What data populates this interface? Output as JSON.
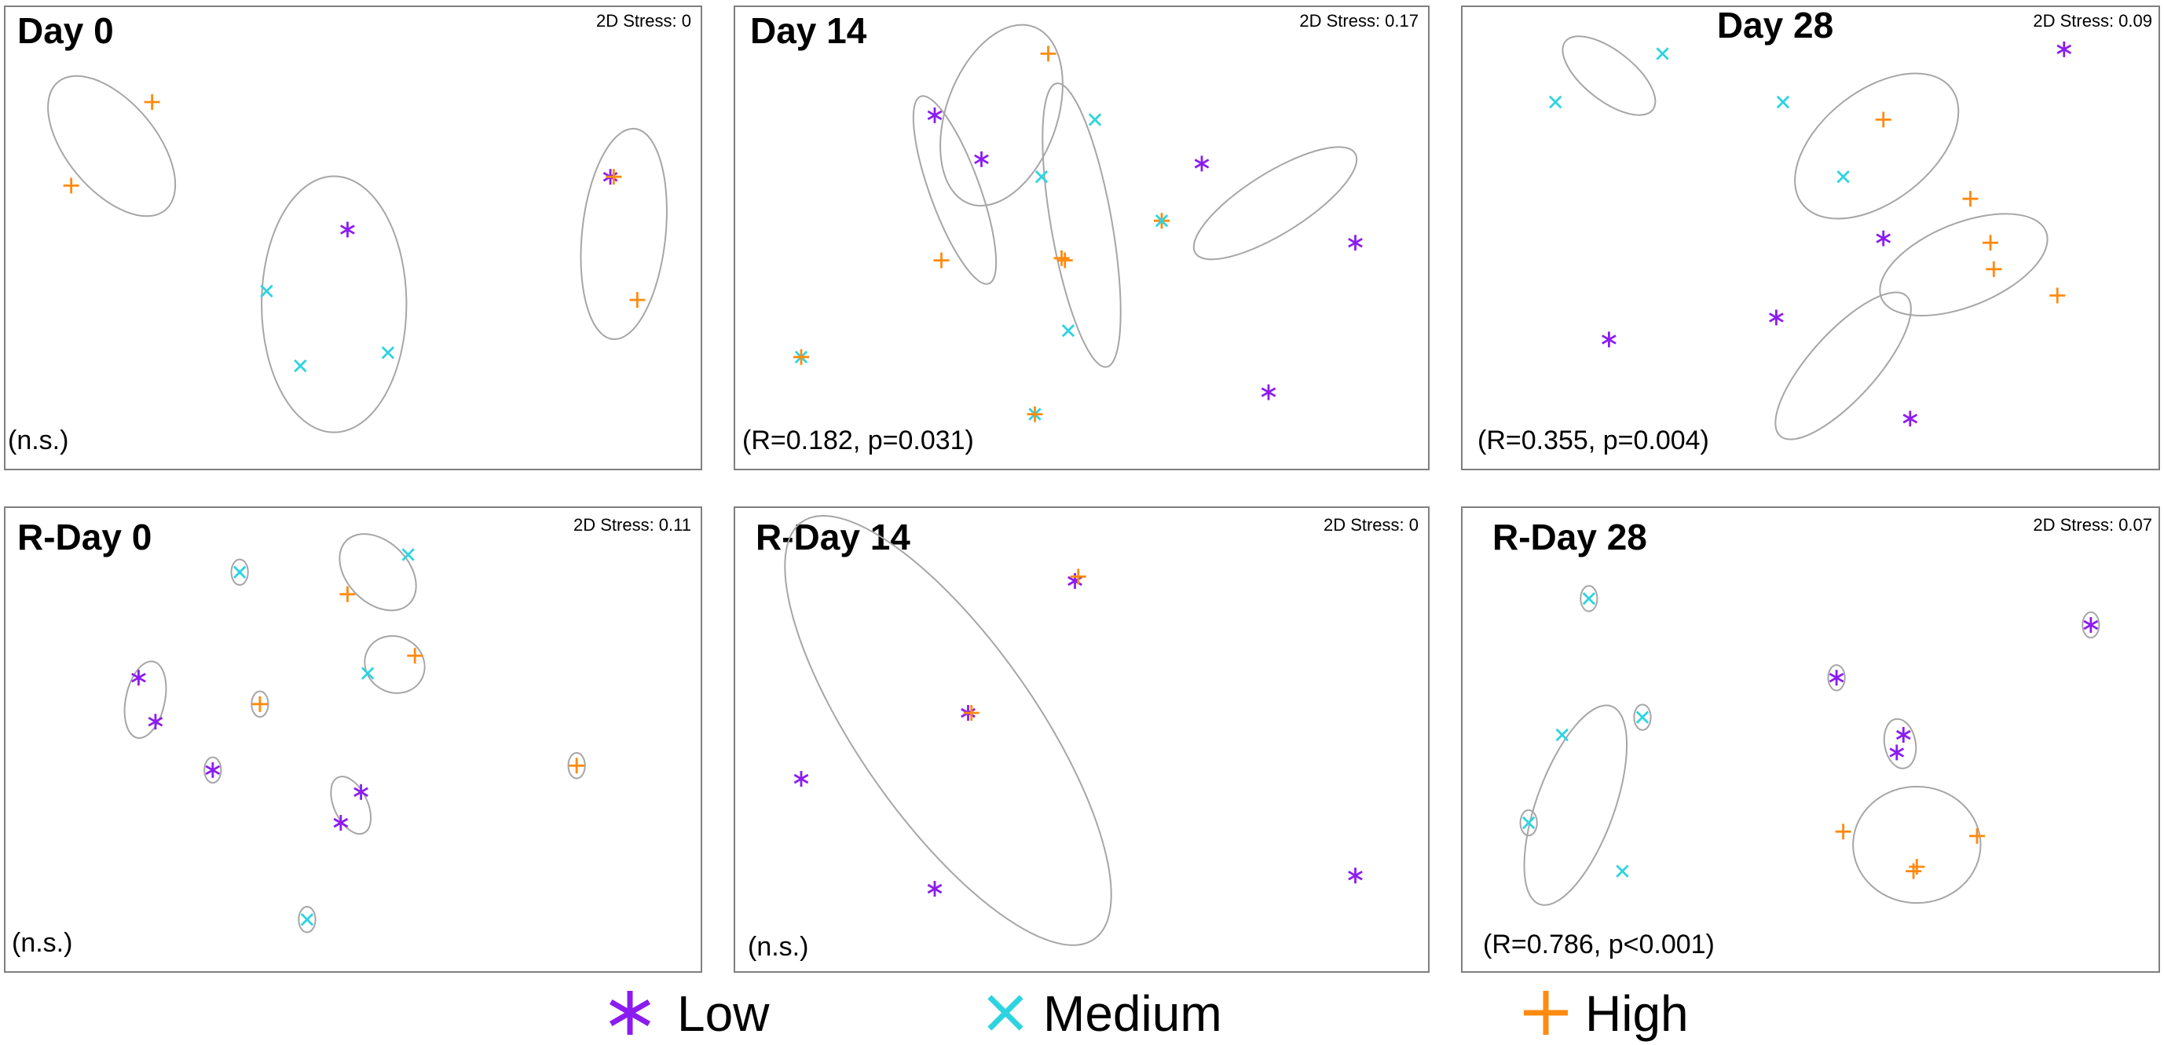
{
  "colors": {
    "Low": "#8b1cf0",
    "Medium": "#2dd4e0",
    "High": "#ff8a10",
    "ellipse": "#a6a6a6",
    "frame": "#7f7f7f"
  },
  "legend": {
    "items": [
      {
        "group": "Low",
        "label": "Low",
        "icon": "asterisk-icon"
      },
      {
        "group": "Medium",
        "label": "Medium",
        "icon": "cross-x-icon"
      },
      {
        "group": "High",
        "label": "High",
        "icon": "plus-icon"
      }
    ]
  },
  "chart_data": [
    {
      "type": "scatter",
      "title": "Day 0",
      "stress_label": "2D Stress: 0",
      "stat_label": "(n.s.)",
      "axes_visible": false,
      "xlim": [
        0,
        100
      ],
      "ylim": [
        0,
        100
      ],
      "points": [
        {
          "group": "High",
          "x": 20,
          "y": 80
        },
        {
          "group": "High",
          "x": 8,
          "y": 61
        },
        {
          "group": "Low",
          "x": 49,
          "y": 51
        },
        {
          "group": "Medium",
          "x": 37,
          "y": 37
        },
        {
          "group": "Medium",
          "x": 42,
          "y": 20
        },
        {
          "group": "Medium",
          "x": 55,
          "y": 23
        },
        {
          "group": "Low",
          "x": 88,
          "y": 63
        },
        {
          "group": "High",
          "x": 88.5,
          "y": 63
        },
        {
          "group": "High",
          "x": 92,
          "y": 35
        }
      ],
      "ellipses": [
        {
          "cx": 14,
          "cy": 70,
          "rx": 8,
          "ry": 15,
          "angle": 40
        },
        {
          "cx": 47,
          "cy": 34,
          "rx": 13,
          "ry": 23,
          "angle": 0
        },
        {
          "cx": 90,
          "cy": 50,
          "rx": 7.5,
          "ry": 19,
          "angle": -6
        }
      ]
    },
    {
      "type": "scatter",
      "title": "Day 14",
      "stress_label": "2D Stress: 0.17",
      "stat_label": "(R=0.182, p=0.031)",
      "axes_visible": false,
      "xlim": [
        0,
        100
      ],
      "ylim": [
        0,
        100
      ],
      "points": [
        {
          "group": "High",
          "x": 45,
          "y": 91
        },
        {
          "group": "Low",
          "x": 28,
          "y": 77
        },
        {
          "group": "Low",
          "x": 35,
          "y": 67
        },
        {
          "group": "Medium",
          "x": 44,
          "y": 63
        },
        {
          "group": "Medium",
          "x": 52,
          "y": 76
        },
        {
          "group": "High",
          "x": 29,
          "y": 44
        },
        {
          "group": "High",
          "x": 47,
          "y": 44.5
        },
        {
          "group": "High",
          "x": 47.5,
          "y": 44
        },
        {
          "group": "Medium",
          "x": 48,
          "y": 28
        },
        {
          "group": "High",
          "x": 62,
          "y": 53
        },
        {
          "group": "Medium",
          "x": 62,
          "y": 53
        },
        {
          "group": "Low",
          "x": 68,
          "y": 66
        },
        {
          "group": "Low",
          "x": 91,
          "y": 48
        },
        {
          "group": "Medium",
          "x": 8,
          "y": 22
        },
        {
          "group": "High",
          "x": 8,
          "y": 22
        },
        {
          "group": "Medium",
          "x": 43,
          "y": 9
        },
        {
          "group": "High",
          "x": 43,
          "y": 9
        },
        {
          "group": "Low",
          "x": 78,
          "y": 14
        }
      ],
      "ellipses": [
        {
          "cx": 38,
          "cy": 77,
          "rx": 10,
          "ry": 17,
          "angle": -20
        },
        {
          "cx": 31,
          "cy": 60,
          "rx": 4.5,
          "ry": 18,
          "angle": 20
        },
        {
          "cx": 50,
          "cy": 52,
          "rx": 5.5,
          "ry": 26,
          "angle": 10
        },
        {
          "cx": 79,
          "cy": 57,
          "rx": 5.5,
          "ry": 17,
          "angle": -58
        }
      ]
    },
    {
      "type": "scatter",
      "title": "Day 28",
      "stress_label": "2D Stress: 0.09",
      "stat_label": "(R=0.355, p=0.004)",
      "axes_visible": false,
      "xlim": [
        0,
        100
      ],
      "ylim": [
        0,
        100
      ],
      "points": [
        {
          "group": "Medium",
          "x": 28,
          "y": 91
        },
        {
          "group": "Medium",
          "x": 12,
          "y": 80
        },
        {
          "group": "Low",
          "x": 88,
          "y": 92
        },
        {
          "group": "Medium",
          "x": 46,
          "y": 80
        },
        {
          "group": "High",
          "x": 61,
          "y": 76
        },
        {
          "group": "Medium",
          "x": 55,
          "y": 63
        },
        {
          "group": "High",
          "x": 74,
          "y": 58
        },
        {
          "group": "Low",
          "x": 61,
          "y": 49
        },
        {
          "group": "High",
          "x": 77,
          "y": 48
        },
        {
          "group": "High",
          "x": 77.5,
          "y": 42
        },
        {
          "group": "High",
          "x": 87,
          "y": 36
        },
        {
          "group": "Low",
          "x": 20,
          "y": 26
        },
        {
          "group": "Low",
          "x": 45,
          "y": 31
        },
        {
          "group": "Low",
          "x": 65,
          "y": 8
        }
      ],
      "ellipses": [
        {
          "cx": 20,
          "cy": 86,
          "rx": 4.5,
          "ry": 10,
          "angle": 52
        },
        {
          "cx": 60,
          "cy": 70,
          "rx": 10,
          "ry": 17,
          "angle": -52
        },
        {
          "cx": 73,
          "cy": 43,
          "rx": 7.5,
          "ry": 16,
          "angle": -68
        },
        {
          "cx": 55,
          "cy": 20,
          "rx": 6,
          "ry": 17,
          "angle": -42
        }
      ]
    },
    {
      "type": "scatter",
      "title": "R-Day 0",
      "stress_label": "2D Stress: 0.11",
      "stat_label": "(n.s.)",
      "axes_visible": false,
      "xlim": [
        0,
        100
      ],
      "ylim": [
        0,
        100
      ],
      "points": [
        {
          "group": "Medium",
          "x": 33,
          "y": 87
        },
        {
          "group": "Medium",
          "x": 58,
          "y": 91
        },
        {
          "group": "High",
          "x": 49,
          "y": 82
        },
        {
          "group": "High",
          "x": 59,
          "y": 68
        },
        {
          "group": "Medium",
          "x": 52,
          "y": 64
        },
        {
          "group": "Low",
          "x": 18,
          "y": 63
        },
        {
          "group": "Low",
          "x": 20.5,
          "y": 53
        },
        {
          "group": "High",
          "x": 36,
          "y": 57
        },
        {
          "group": "Low",
          "x": 29,
          "y": 42
        },
        {
          "group": "High",
          "x": 83,
          "y": 43
        },
        {
          "group": "Low",
          "x": 51,
          "y": 37
        },
        {
          "group": "Low",
          "x": 48,
          "y": 30
        },
        {
          "group": "Medium",
          "x": 43,
          "y": 8
        }
      ],
      "ellipses": [
        {
          "cx": 33,
          "cy": 87,
          "rx": 1.5,
          "ry": 2.3,
          "angle": 0
        },
        {
          "cx": 53.5,
          "cy": 87,
          "rx": 5.5,
          "ry": 8,
          "angle": 45
        },
        {
          "cx": 56,
          "cy": 66,
          "rx": 5,
          "ry": 5.5,
          "angle": 60
        },
        {
          "cx": 19,
          "cy": 58,
          "rx": 3.5,
          "ry": 7,
          "angle": -12
        },
        {
          "cx": 36,
          "cy": 57,
          "rx": 1.5,
          "ry": 2.3,
          "angle": 0
        },
        {
          "cx": 29,
          "cy": 42,
          "rx": 1.5,
          "ry": 2.3,
          "angle": 0
        },
        {
          "cx": 83,
          "cy": 43,
          "rx": 1.5,
          "ry": 2.3,
          "angle": 0
        },
        {
          "cx": 49.5,
          "cy": 34,
          "rx": 3,
          "ry": 5.5,
          "angle": 25
        },
        {
          "cx": 43,
          "cy": 8,
          "rx": 1.5,
          "ry": 2.3,
          "angle": 0
        }
      ]
    },
    {
      "type": "scatter",
      "title": "R-Day 14",
      "stress_label": "2D Stress: 0",
      "stat_label": "(n.s.)",
      "axes_visible": false,
      "xlim": [
        0,
        100
      ],
      "ylim": [
        0,
        100
      ],
      "points": [
        {
          "group": "Low",
          "x": 49,
          "y": 85
        },
        {
          "group": "High",
          "x": 49.5,
          "y": 86
        },
        {
          "group": "Low",
          "x": 33,
          "y": 55
        },
        {
          "group": "High",
          "x": 33.5,
          "y": 55
        },
        {
          "group": "Low",
          "x": 8,
          "y": 40
        },
        {
          "group": "Low",
          "x": 28,
          "y": 15
        },
        {
          "group": "Low",
          "x": 91,
          "y": 18
        }
      ],
      "ellipses": [
        {
          "cx": 30,
          "cy": 51,
          "rx": 16,
          "ry": 46,
          "angle": 35
        }
      ]
    },
    {
      "type": "scatter",
      "title": "R-Day 28",
      "stress_label": "2D Stress: 0.07",
      "stat_label": "(R=0.786, p<0.001)",
      "axes_visible": false,
      "xlim": [
        0,
        100
      ],
      "ylim": [
        0,
        100
      ],
      "points": [
        {
          "group": "Medium",
          "x": 17,
          "y": 81
        },
        {
          "group": "Low",
          "x": 92,
          "y": 75
        },
        {
          "group": "Low",
          "x": 54,
          "y": 63
        },
        {
          "group": "Medium",
          "x": 25,
          "y": 54
        },
        {
          "group": "Low",
          "x": 64,
          "y": 50
        },
        {
          "group": "Low",
          "x": 63,
          "y": 46
        },
        {
          "group": "Medium",
          "x": 13,
          "y": 50
        },
        {
          "group": "Medium",
          "x": 8,
          "y": 30
        },
        {
          "group": "Medium",
          "x": 22,
          "y": 19
        },
        {
          "group": "High",
          "x": 55,
          "y": 28
        },
        {
          "group": "High",
          "x": 66,
          "y": 20
        },
        {
          "group": "High",
          "x": 65.5,
          "y": 19
        },
        {
          "group": "High",
          "x": 75,
          "y": 27
        }
      ],
      "ellipses": [
        {
          "cx": 17,
          "cy": 81,
          "rx": 1.5,
          "ry": 2.3,
          "angle": 0
        },
        {
          "cx": 92,
          "cy": 75,
          "rx": 1.5,
          "ry": 2.3,
          "angle": 0
        },
        {
          "cx": 54,
          "cy": 63,
          "rx": 1.5,
          "ry": 2.3,
          "angle": 0
        },
        {
          "cx": 25,
          "cy": 54,
          "rx": 1.5,
          "ry": 2.3,
          "angle": 0
        },
        {
          "cx": 63.5,
          "cy": 48,
          "rx": 2.8,
          "ry": 4.5,
          "angle": 10
        },
        {
          "cx": 8,
          "cy": 30,
          "rx": 1.5,
          "ry": 2.3,
          "angle": 0
        },
        {
          "cx": 15,
          "cy": 34,
          "rx": 7,
          "ry": 19,
          "angle": -20
        },
        {
          "cx": 66,
          "cy": 25,
          "rx": 11.5,
          "ry": 10.5,
          "angle": 0
        }
      ]
    }
  ]
}
